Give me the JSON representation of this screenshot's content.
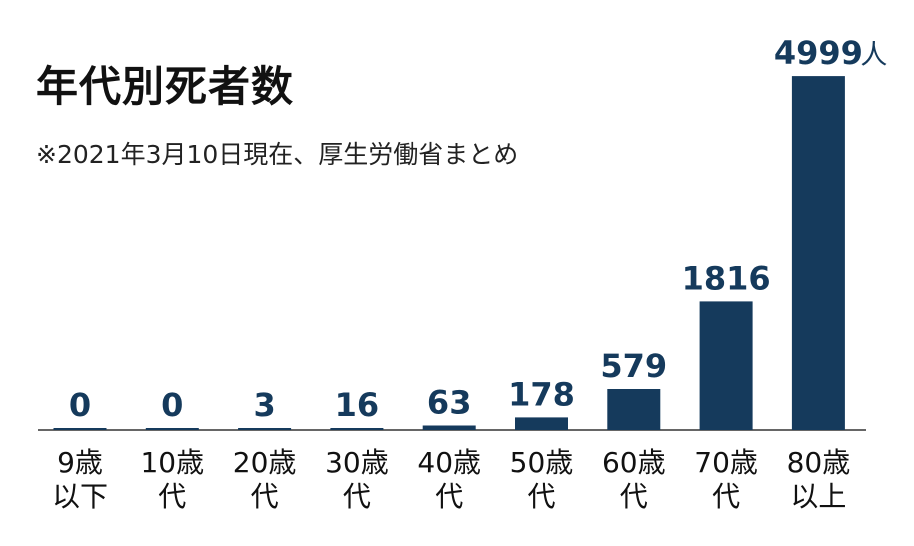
{
  "chart_data": {
    "type": "bar",
    "title": "年代別死者数",
    "subtitle": "※2021年3月10日現在、厚生労働省まとめ",
    "categories": [
      [
        "9歳",
        "以下"
      ],
      [
        "10歳",
        "代"
      ],
      [
        "20歳",
        "代"
      ],
      [
        "30歳",
        "代"
      ],
      [
        "40歳",
        "代"
      ],
      [
        "50歳",
        "代"
      ],
      [
        "60歳",
        "代"
      ],
      [
        "70歳",
        "代"
      ],
      [
        "80歳",
        "以上"
      ]
    ],
    "values": [
      0,
      0,
      3,
      16,
      63,
      178,
      579,
      1816,
      4999
    ],
    "unit": "人",
    "ylim": [
      0,
      5000
    ],
    "grid": false,
    "legend": "none",
    "bar_color": "#153a5c"
  }
}
